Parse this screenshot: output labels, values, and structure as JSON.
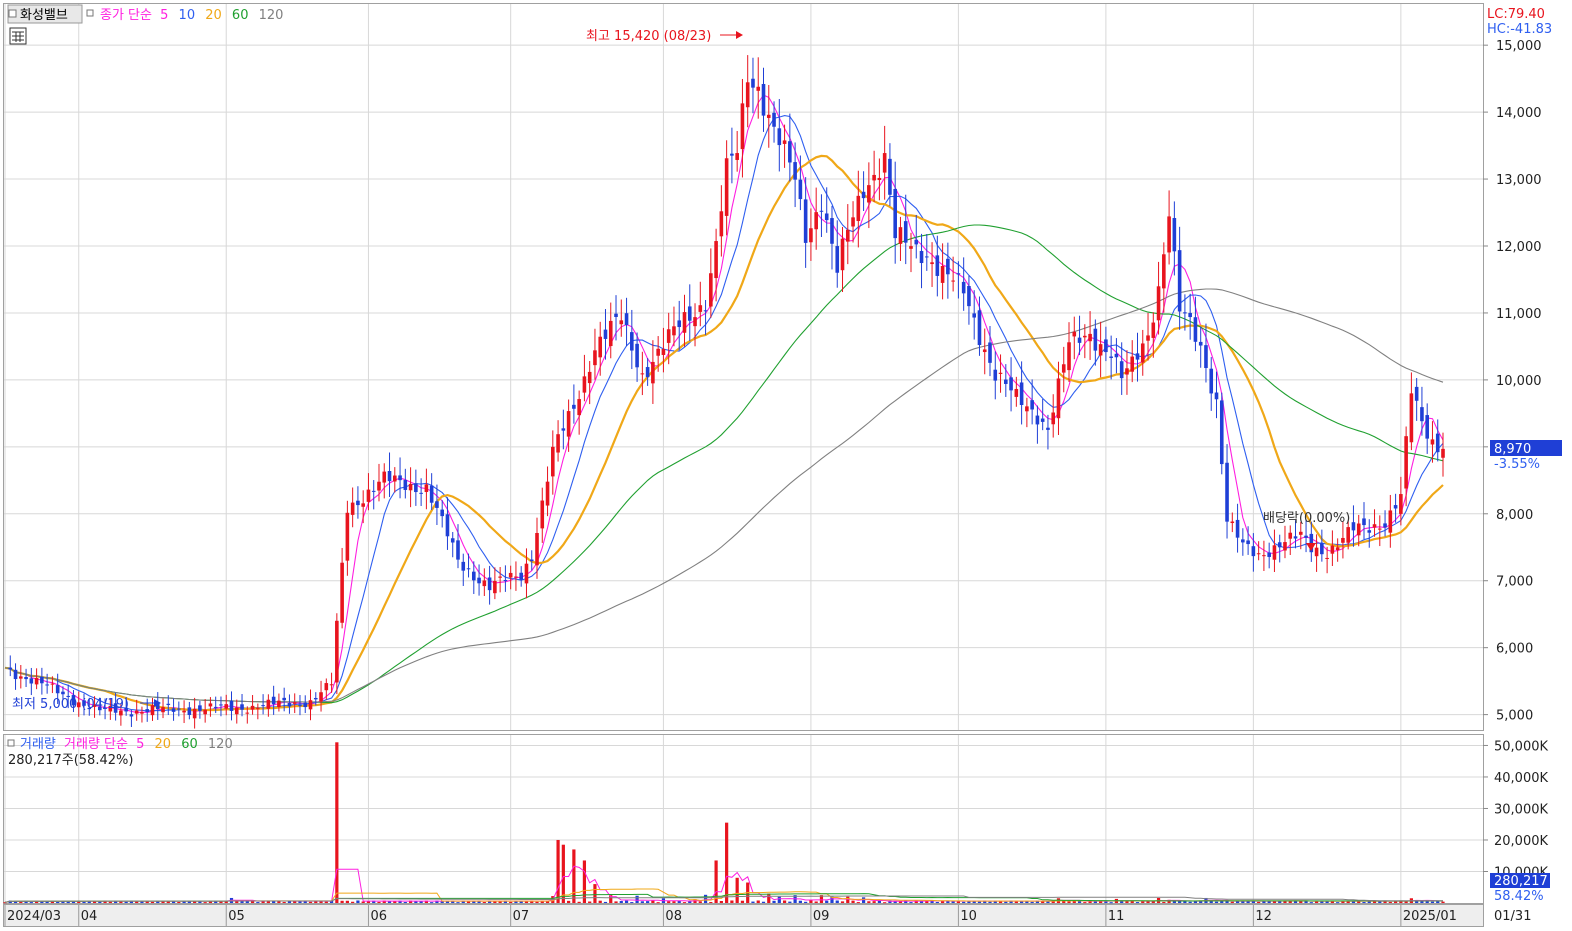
{
  "chart_data": {
    "type": "candlestick",
    "title": "화성밸브",
    "price_legend": {
      "label": "종가 단순",
      "periods": [
        "5",
        "10",
        "20",
        "60",
        "120"
      ]
    },
    "volume_legend": {
      "label": "거래량 단순",
      "periods": [
        "5",
        "20",
        "60",
        "120"
      ]
    },
    "volume_info": "280,217주(58.42%)",
    "lc": "LC:79.40",
    "hc": "HC:-41.83",
    "high_annotation": "최고 15,420 (08/23)",
    "low_annotation": "최저 5,000 (04/19)",
    "dividend_label": "배당락(0.00%)",
    "last_price": "8,970",
    "last_change": "-3.55%",
    "last_volume": "280,217",
    "x_labels": [
      "2024/03",
      "04",
      "05",
      "06",
      "07",
      "08",
      "09",
      "10",
      "11",
      "12",
      "2025/01",
      "01/31"
    ],
    "price_ticks": [
      "5,000",
      "6,000",
      "7,000",
      "8,000",
      "9,000",
      "10,000",
      "11,000",
      "12,000",
      "13,000",
      "14,000",
      "15,000"
    ],
    "volume_ticks": [
      "10,000K",
      "20,000K",
      "30,000K",
      "40,000K",
      "50,000K"
    ],
    "ylim": [
      4800,
      15600
    ],
    "volume_ylim": [
      0,
      53000
    ],
    "colors": {
      "up": "#e8141e",
      "down": "#1f3fd6",
      "ma5": "#ff1fe0",
      "ma10": "#2f5ff0",
      "ma20": "#f0a818",
      "ma60": "#20a030",
      "ma120": "#808080",
      "grid": "#d8d8d8",
      "title_bg": "#e8e8e8",
      "last_box": "#1f3fd6"
    },
    "anchors": [
      [
        0,
        5700
      ],
      [
        18,
        5050
      ],
      [
        44,
        5100
      ],
      [
        58,
        5200
      ],
      [
        62,
        5450
      ],
      [
        65,
        8100
      ],
      [
        72,
        8500
      ],
      [
        80,
        8400
      ],
      [
        86,
        7300
      ],
      [
        92,
        6900
      ],
      [
        98,
        7100
      ],
      [
        100,
        7400
      ],
      [
        104,
        8900
      ],
      [
        108,
        9600
      ],
      [
        112,
        10500
      ],
      [
        117,
        10900
      ],
      [
        121,
        10100
      ],
      [
        125,
        10500
      ],
      [
        129,
        10900
      ],
      [
        133,
        11200
      ],
      [
        135,
        12000
      ],
      [
        137,
        13100
      ],
      [
        139,
        13400
      ],
      [
        141,
        14600
      ],
      [
        143,
        14400
      ],
      [
        146,
        13700
      ],
      [
        150,
        13000
      ],
      [
        152,
        12200
      ],
      [
        155,
        12700
      ],
      [
        158,
        11600
      ],
      [
        160,
        12200
      ],
      [
        163,
        12900
      ],
      [
        167,
        13300
      ],
      [
        169,
        12100
      ],
      [
        172,
        12000
      ],
      [
        175,
        11900
      ],
      [
        178,
        11600
      ],
      [
        182,
        11300
      ],
      [
        184,
        10900
      ],
      [
        188,
        10100
      ],
      [
        192,
        9700
      ],
      [
        196,
        9500
      ],
      [
        198,
        9300
      ],
      [
        202,
        10500
      ],
      [
        206,
        10700
      ],
      [
        210,
        10400
      ],
      [
        212,
        10000
      ],
      [
        214,
        10200
      ],
      [
        217,
        10700
      ],
      [
        219,
        11400
      ],
      [
        221,
        12500
      ],
      [
        223,
        11000
      ],
      [
        225,
        10800
      ],
      [
        227,
        10500
      ],
      [
        230,
        9700
      ],
      [
        232,
        7900
      ],
      [
        235,
        7500
      ],
      [
        238,
        7400
      ],
      [
        242,
        7550
      ],
      [
        246,
        7650
      ],
      [
        248,
        7500
      ],
      [
        251,
        7450
      ],
      [
        253,
        7550
      ],
      [
        256,
        7750
      ],
      [
        259,
        7800
      ],
      [
        262,
        7900
      ],
      [
        265,
        8250
      ],
      [
        267,
        9800
      ],
      [
        269,
        9350
      ],
      [
        271,
        9100
      ],
      [
        273,
        8970
      ]
    ],
    "volume_spikes": [
      [
        43,
        1600
      ],
      [
        50,
        800
      ],
      [
        62,
        700
      ],
      [
        63,
        51000
      ],
      [
        64,
        700
      ],
      [
        104,
        2200
      ],
      [
        105,
        20000
      ],
      [
        106,
        18500
      ],
      [
        108,
        17000
      ],
      [
        110,
        13500
      ],
      [
        112,
        6000
      ],
      [
        115,
        2500
      ],
      [
        120,
        2300
      ],
      [
        125,
        1500
      ],
      [
        131,
        1200
      ],
      [
        133,
        2600
      ],
      [
        135,
        13500
      ],
      [
        137,
        25500
      ],
      [
        139,
        8000
      ],
      [
        141,
        6500
      ],
      [
        145,
        3000
      ],
      [
        147,
        2000
      ],
      [
        150,
        2500
      ],
      [
        155,
        2500
      ],
      [
        157,
        2000
      ],
      [
        160,
        2000
      ],
      [
        163,
        1800
      ],
      [
        175,
        800
      ],
      [
        200,
        1500
      ],
      [
        211,
        1300
      ],
      [
        219,
        1600
      ],
      [
        221,
        1000
      ],
      [
        228,
        1600
      ],
      [
        243,
        700
      ],
      [
        267,
        1500
      ],
      [
        268,
        700
      ]
    ]
  }
}
